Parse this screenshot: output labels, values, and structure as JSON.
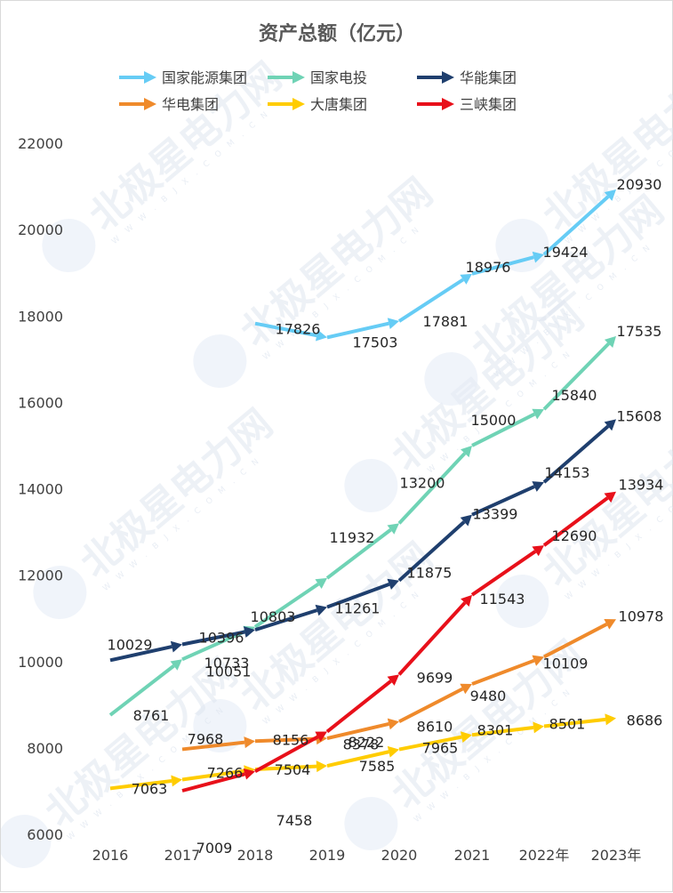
{
  "chart_data": {
    "type": "line",
    "title": "资产总额（亿元）",
    "categories": [
      "2016",
      "2017",
      "2018",
      "2019",
      "2020",
      "2021",
      "2022年",
      "2023年"
    ],
    "ylim": [
      6000,
      22000
    ],
    "yticks": [
      6000,
      8000,
      10000,
      12000,
      14000,
      16000,
      18000,
      20000,
      22000
    ],
    "grid": false,
    "legend_position": "top",
    "series": [
      {
        "name": "国家能源集团",
        "color": "#66ccf5",
        "values": [
          null,
          null,
          17826,
          17503,
          17881,
          18976,
          19424,
          20930
        ]
      },
      {
        "name": "国家电投",
        "color": "#6fd3b5",
        "values": [
          8761,
          10051,
          10803,
          11932,
          13200,
          15000,
          15840,
          17535
        ]
      },
      {
        "name": "华能集团",
        "color": "#1f3f6e",
        "values": [
          10029,
          10396,
          10733,
          11261,
          11875,
          13399,
          14153,
          15608
        ]
      },
      {
        "name": "华电集团",
        "color": "#ef8a2b",
        "values": [
          null,
          7968,
          8156,
          8222,
          8610,
          9480,
          10109,
          10978
        ]
      },
      {
        "name": "大唐集团",
        "color": "#ffcc00",
        "values": [
          7063,
          7266,
          7504,
          7585,
          7965,
          8301,
          8501,
          8686
        ]
      },
      {
        "name": "三峡集团",
        "color": "#e8101a",
        "values": [
          null,
          7009,
          7458,
          8378,
          9699,
          11543,
          12690,
          13934
        ]
      }
    ],
    "data_labels": [
      {
        "series": 0,
        "values": [
          "",
          "",
          "17826",
          "17503",
          "17881",
          "18976",
          "19424",
          "20930"
        ]
      },
      {
        "series": 1,
        "values": [
          "8761",
          "10051",
          "10803",
          "11932",
          "13200",
          "15000",
          "15840",
          "17535"
        ]
      },
      {
        "series": 2,
        "values": [
          "10029",
          "10396",
          "10733",
          "11261",
          "11875",
          "13399",
          "14153",
          "15608"
        ]
      },
      {
        "series": 3,
        "values": [
          "",
          "7968",
          "8156",
          "8222",
          "8610",
          "9480",
          "10109",
          "10978"
        ]
      },
      {
        "series": 4,
        "values": [
          "7063",
          "7266",
          "7504",
          "7585",
          "7965",
          "8301",
          "8501",
          "8686"
        ]
      },
      {
        "series": 5,
        "values": [
          "",
          "7009",
          "7458",
          "8378",
          "9699",
          "11543",
          "12690",
          "13934"
        ]
      }
    ]
  },
  "watermark": {
    "text": "北极星电力网",
    "sub": "W W W . B J X . C O M . C N"
  }
}
